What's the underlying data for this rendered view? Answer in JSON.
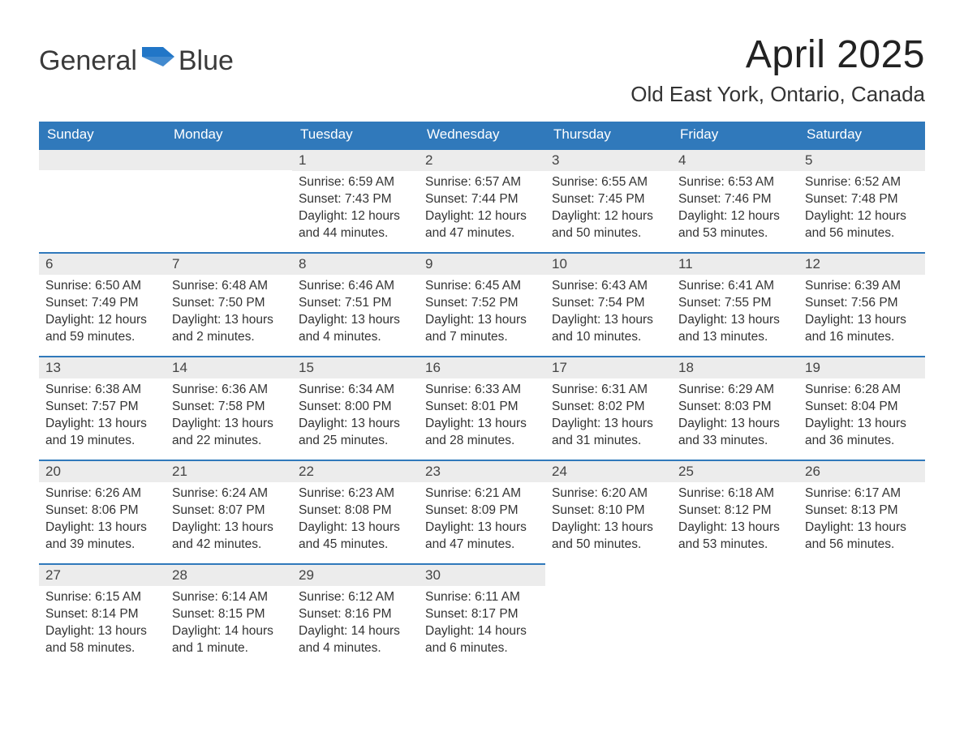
{
  "brand": {
    "word1": "General",
    "word2": "Blue",
    "text_color": "#3a3a3a",
    "accent_color": "#2176c7"
  },
  "title": "April 2025",
  "location": "Old East York, Ontario, Canada",
  "colors": {
    "header_bg": "#3079bb",
    "header_text": "#ffffff",
    "row_stripe": "#ececec",
    "row_border": "#3079bb",
    "body_text": "#333333",
    "background": "#ffffff"
  },
  "typography": {
    "title_fontsize": 48,
    "location_fontsize": 26,
    "dayhead_fontsize": 17,
    "daynum_fontsize": 17,
    "body_fontsize": 15.5,
    "logo_fontsize": 34
  },
  "layout": {
    "columns": 7,
    "rows": 5,
    "blank_leading_cells": 2
  },
  "day_names": [
    "Sunday",
    "Monday",
    "Tuesday",
    "Wednesday",
    "Thursday",
    "Friday",
    "Saturday"
  ],
  "days": [
    {
      "n": 1,
      "sunrise": "6:59 AM",
      "sunset": "7:43 PM",
      "daylight": "12 hours and 44 minutes."
    },
    {
      "n": 2,
      "sunrise": "6:57 AM",
      "sunset": "7:44 PM",
      "daylight": "12 hours and 47 minutes."
    },
    {
      "n": 3,
      "sunrise": "6:55 AM",
      "sunset": "7:45 PM",
      "daylight": "12 hours and 50 minutes."
    },
    {
      "n": 4,
      "sunrise": "6:53 AM",
      "sunset": "7:46 PM",
      "daylight": "12 hours and 53 minutes."
    },
    {
      "n": 5,
      "sunrise": "6:52 AM",
      "sunset": "7:48 PM",
      "daylight": "12 hours and 56 minutes."
    },
    {
      "n": 6,
      "sunrise": "6:50 AM",
      "sunset": "7:49 PM",
      "daylight": "12 hours and 59 minutes."
    },
    {
      "n": 7,
      "sunrise": "6:48 AM",
      "sunset": "7:50 PM",
      "daylight": "13 hours and 2 minutes."
    },
    {
      "n": 8,
      "sunrise": "6:46 AM",
      "sunset": "7:51 PM",
      "daylight": "13 hours and 4 minutes."
    },
    {
      "n": 9,
      "sunrise": "6:45 AM",
      "sunset": "7:52 PM",
      "daylight": "13 hours and 7 minutes."
    },
    {
      "n": 10,
      "sunrise": "6:43 AM",
      "sunset": "7:54 PM",
      "daylight": "13 hours and 10 minutes."
    },
    {
      "n": 11,
      "sunrise": "6:41 AM",
      "sunset": "7:55 PM",
      "daylight": "13 hours and 13 minutes."
    },
    {
      "n": 12,
      "sunrise": "6:39 AM",
      "sunset": "7:56 PM",
      "daylight": "13 hours and 16 minutes."
    },
    {
      "n": 13,
      "sunrise": "6:38 AM",
      "sunset": "7:57 PM",
      "daylight": "13 hours and 19 minutes."
    },
    {
      "n": 14,
      "sunrise": "6:36 AM",
      "sunset": "7:58 PM",
      "daylight": "13 hours and 22 minutes."
    },
    {
      "n": 15,
      "sunrise": "6:34 AM",
      "sunset": "8:00 PM",
      "daylight": "13 hours and 25 minutes."
    },
    {
      "n": 16,
      "sunrise": "6:33 AM",
      "sunset": "8:01 PM",
      "daylight": "13 hours and 28 minutes."
    },
    {
      "n": 17,
      "sunrise": "6:31 AM",
      "sunset": "8:02 PM",
      "daylight": "13 hours and 31 minutes."
    },
    {
      "n": 18,
      "sunrise": "6:29 AM",
      "sunset": "8:03 PM",
      "daylight": "13 hours and 33 minutes."
    },
    {
      "n": 19,
      "sunrise": "6:28 AM",
      "sunset": "8:04 PM",
      "daylight": "13 hours and 36 minutes."
    },
    {
      "n": 20,
      "sunrise": "6:26 AM",
      "sunset": "8:06 PM",
      "daylight": "13 hours and 39 minutes."
    },
    {
      "n": 21,
      "sunrise": "6:24 AM",
      "sunset": "8:07 PM",
      "daylight": "13 hours and 42 minutes."
    },
    {
      "n": 22,
      "sunrise": "6:23 AM",
      "sunset": "8:08 PM",
      "daylight": "13 hours and 45 minutes."
    },
    {
      "n": 23,
      "sunrise": "6:21 AM",
      "sunset": "8:09 PM",
      "daylight": "13 hours and 47 minutes."
    },
    {
      "n": 24,
      "sunrise": "6:20 AM",
      "sunset": "8:10 PM",
      "daylight": "13 hours and 50 minutes."
    },
    {
      "n": 25,
      "sunrise": "6:18 AM",
      "sunset": "8:12 PM",
      "daylight": "13 hours and 53 minutes."
    },
    {
      "n": 26,
      "sunrise": "6:17 AM",
      "sunset": "8:13 PM",
      "daylight": "13 hours and 56 minutes."
    },
    {
      "n": 27,
      "sunrise": "6:15 AM",
      "sunset": "8:14 PM",
      "daylight": "13 hours and 58 minutes."
    },
    {
      "n": 28,
      "sunrise": "6:14 AM",
      "sunset": "8:15 PM",
      "daylight": "14 hours and 1 minute."
    },
    {
      "n": 29,
      "sunrise": "6:12 AM",
      "sunset": "8:16 PM",
      "daylight": "14 hours and 4 minutes."
    },
    {
      "n": 30,
      "sunrise": "6:11 AM",
      "sunset": "8:17 PM",
      "daylight": "14 hours and 6 minutes."
    }
  ],
  "labels": {
    "sunrise": "Sunrise:",
    "sunset": "Sunset:",
    "daylight": "Daylight:"
  }
}
